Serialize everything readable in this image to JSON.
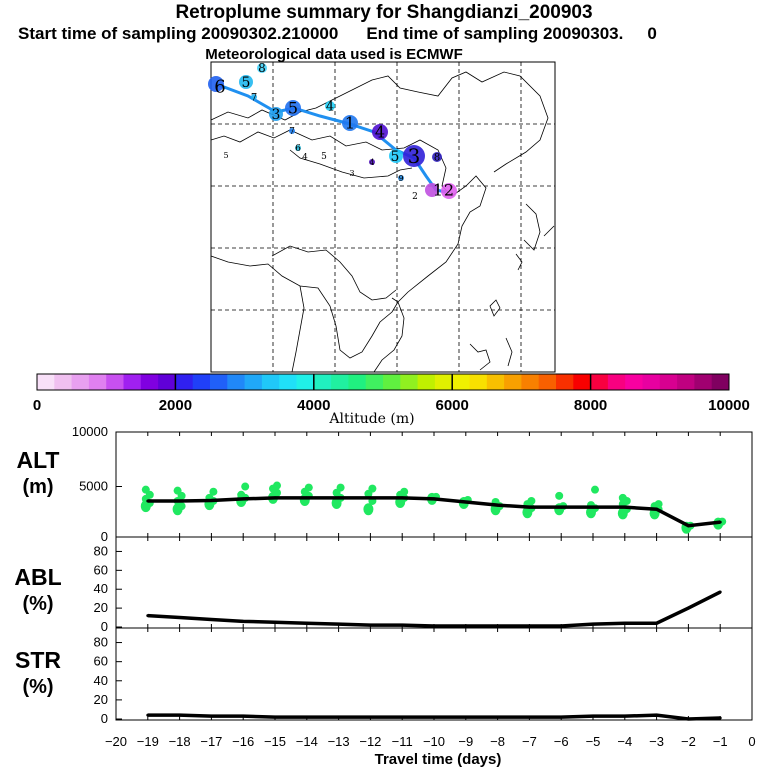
{
  "header": {
    "title": "Retroplume summary for Shangdianzi_200903",
    "start_label": "Start time of sampling 20090302.210000",
    "end_label": "End time of sampling 20090303.",
    "end_trail": "0",
    "met_label": "Meteorological data used is ECMWF"
  },
  "colorbar": {
    "ticks": [
      "0",
      "2000",
      "4000",
      "6000",
      "8000",
      "10000"
    ],
    "label": "Altitude (m)",
    "colors": [
      "#f8e0f8",
      "#f0c0f0",
      "#e8a0f0",
      "#e080f0",
      "#c850f0",
      "#a020f0",
      "#8000e0",
      "#6000d8",
      "#3020f0",
      "#2040f8",
      "#2060f8",
      "#2088f8",
      "#20a8f8",
      "#20c8f8",
      "#20e0f8",
      "#20f0e8",
      "#20f0c0",
      "#20f0a0",
      "#20f080",
      "#40f060",
      "#60f040",
      "#90f020",
      "#c0f000",
      "#e0f000",
      "#f0f000",
      "#f8e000",
      "#f8c000",
      "#f8a000",
      "#f88000",
      "#f86000",
      "#f83000",
      "#f80000",
      "#f80040",
      "#f80080",
      "#f800a0",
      "#e800a0",
      "#d80090",
      "#c00080",
      "#a00070",
      "#800060"
    ]
  },
  "map": {
    "labels": [
      {
        "t": "1",
        "x": 438,
        "y": 190,
        "s": 16,
        "c": "#c050e0"
      },
      {
        "t": "2",
        "x": 449,
        "y": 190,
        "s": 16,
        "c": "#e060f0"
      },
      {
        "t": "3",
        "x": 414,
        "y": 156,
        "s": 20,
        "c": "#3020d8"
      },
      {
        "t": "4",
        "x": 380,
        "y": 132,
        "s": 16,
        "c": "#5010d0"
      },
      {
        "t": "5",
        "x": 395,
        "y": 156,
        "s": 14,
        "c": "#20c8f8"
      },
      {
        "t": "1",
        "x": 350,
        "y": 123,
        "s": 16,
        "c": "#2078f0"
      },
      {
        "t": "4",
        "x": 330,
        "y": 106,
        "s": 13,
        "c": "#20d0f8"
      },
      {
        "t": "5",
        "x": 293,
        "y": 108,
        "s": 16,
        "c": "#2070f0"
      },
      {
        "t": "3",
        "x": 276,
        "y": 114,
        "s": 14,
        "c": "#20a0f0"
      },
      {
        "t": "5",
        "x": 246,
        "y": 82,
        "s": 14,
        "c": "#20b8f0"
      },
      {
        "t": "6",
        "x": 220,
        "y": 86,
        "s": 18,
        "c": "#2060f0"
      },
      {
        "t": "8",
        "x": 262,
        "y": 68,
        "s": 12,
        "c": "#40d0f8"
      },
      {
        "t": "7",
        "x": 254,
        "y": 97,
        "s": 10,
        "c": "#20b0f0"
      },
      {
        "t": "7",
        "x": 292,
        "y": 131,
        "s": 9,
        "c": "#2080f0"
      },
      {
        "t": "6",
        "x": 298,
        "y": 148,
        "s": 9,
        "c": "#20b0d0"
      },
      {
        "t": "4",
        "x": 305,
        "y": 157,
        "s": 9,
        "c": "#20c0c0"
      },
      {
        "t": "5",
        "x": 324,
        "y": 156,
        "s": 9,
        "c": "#20b0d0"
      },
      {
        "t": "4",
        "x": 372,
        "y": 162,
        "s": 8,
        "c": "#5010c0"
      },
      {
        "t": "8",
        "x": 437,
        "y": 157,
        "s": 10,
        "c": "#3020c0"
      },
      {
        "t": "2",
        "x": 415,
        "y": 196,
        "s": 9,
        "c": "#6010c0"
      },
      {
        "t": "3",
        "x": 352,
        "y": 173,
        "s": 8,
        "c": "#20a0b0"
      },
      {
        "t": "9",
        "x": 401,
        "y": 178,
        "s": 8,
        "c": "#2080d0"
      },
      {
        "t": "5",
        "x": 226,
        "y": 155,
        "s": 8,
        "c": "#20a080"
      }
    ]
  },
  "panels": {
    "alt": {
      "name": "ALT",
      "unit": "(m)",
      "ticks": [
        "10000",
        "5000",
        "0"
      ]
    },
    "abl": {
      "name": "ABL",
      "unit": "(%)",
      "ticks": [
        "80",
        "60",
        "40",
        "20",
        "0"
      ]
    },
    "str": {
      "name": "STR",
      "unit": "(%)",
      "ticks": [
        "80",
        "60",
        "40",
        "20",
        "0"
      ]
    }
  },
  "xaxis": {
    "ticks": [
      "−20",
      "−19",
      "−18",
      "−17",
      "−16",
      "−15",
      "−14",
      "−13",
      "−12",
      "−11",
      "−10",
      "−9",
      "−8",
      "−7",
      "−6",
      "−5",
      "−4",
      "−3",
      "−2",
      "−1",
      "0"
    ],
    "label": "Travel time (days)"
  },
  "chart_data": [
    {
      "type": "line",
      "title": "ALT",
      "ylabel": "(m)",
      "xlabel": "Travel time (days)",
      "x": [
        -19,
        -18,
        -17,
        -16,
        -15,
        -14,
        -13,
        -12,
        -11,
        -10,
        -9,
        -8,
        -7,
        -6,
        -5,
        -4,
        -3,
        -2,
        -1
      ],
      "values": [
        3400,
        3400,
        3450,
        3600,
        3700,
        3700,
        3700,
        3700,
        3700,
        3600,
        3300,
        3000,
        2800,
        2800,
        2800,
        2800,
        2600,
        1000,
        1350
      ],
      "xlim": [
        -20,
        0
      ],
      "ylim": [
        0,
        10000
      ]
    },
    {
      "type": "line",
      "title": "ABL",
      "ylabel": "(%)",
      "xlabel": "Travel time (days)",
      "x": [
        -19,
        -18,
        -17,
        -16,
        -15,
        -14,
        -13,
        -12,
        -11,
        -10,
        -9,
        -8,
        -7,
        -6,
        -5,
        -4,
        -3,
        -2,
        -1
      ],
      "values": [
        12,
        10,
        8,
        6,
        5,
        4,
        3,
        2,
        2,
        1,
        1,
        1,
        1,
        1,
        3,
        4,
        4,
        20,
        37
      ],
      "xlim": [
        -20,
        0
      ],
      "ylim": [
        0,
        90
      ]
    },
    {
      "type": "line",
      "title": "STR",
      "ylabel": "(%)",
      "xlabel": "Travel time (days)",
      "x": [
        -19,
        -18,
        -17,
        -16,
        -15,
        -14,
        -13,
        -12,
        -11,
        -10,
        -9,
        -8,
        -7,
        -6,
        -5,
        -4,
        -3,
        -2,
        -1
      ],
      "values": [
        4,
        4,
        3,
        3,
        2,
        2,
        2,
        2,
        2,
        2,
        2,
        2,
        2,
        2,
        3,
        3,
        4,
        0,
        1
      ],
      "xlim": [
        -20,
        0
      ],
      "ylim": [
        0,
        90
      ]
    }
  ]
}
